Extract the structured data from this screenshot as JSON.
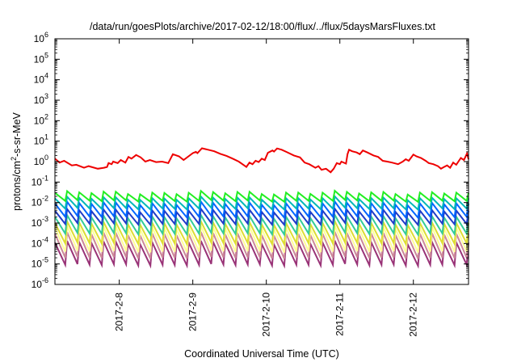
{
  "chart_data": {
    "type": "line",
    "title": "/data/run/goesPlots/archive/2017-02-12/18:00/flux/../flux/5daysMarsFluxes.txt",
    "xlabel": "Coordinated Universal Time (UTC)",
    "ylabel": {
      "base": "protons/cm",
      "sup": "2",
      "rest": "-s-sr-MeV"
    },
    "yscale": "log",
    "ylim": [
      1e-06,
      1000000.0
    ],
    "xlim": [
      "2017-02-07T03:00",
      "2017-02-12T18:00"
    ],
    "ytick_exponents": [
      -6,
      -5,
      -4,
      -3,
      -2,
      -1,
      0,
      1,
      2,
      3,
      4,
      5,
      6
    ],
    "ytick_base": "10",
    "xticks": [
      {
        "x": "2017-02-08T00:00",
        "label": "2017-2-8"
      },
      {
        "x": "2017-02-09T00:00",
        "label": "2017-2-9"
      },
      {
        "x": "2017-02-10T00:00",
        "label": "2017-2-10"
      },
      {
        "x": "2017-02-11T00:00",
        "label": "2017-2-11"
      },
      {
        "x": "2017-02-12T00:00",
        "label": "2017-2-12"
      }
    ],
    "grid": false,
    "legend": "none",
    "series": [
      {
        "color": "#ee0000",
        "width": 2,
        "kind": "piecewise",
        "points": [
          [
            "2017-02-07T03:00",
            1.4
          ],
          [
            "2017-02-07T04:30",
            0.9
          ],
          [
            "2017-02-07T06:00",
            1.1
          ],
          [
            "2017-02-07T08:30",
            0.65
          ],
          [
            "2017-02-07T10:00",
            0.7
          ],
          [
            "2017-02-07T12:30",
            0.5
          ],
          [
            "2017-02-07T14:00",
            0.6
          ],
          [
            "2017-02-07T17:00",
            0.45
          ],
          [
            "2017-02-07T19:00",
            0.5
          ],
          [
            "2017-02-07T20:00",
            0.55
          ],
          [
            "2017-02-07T20:30",
            0.85
          ],
          [
            "2017-02-07T21:30",
            0.75
          ],
          [
            "2017-02-07T22:00",
            1.0
          ],
          [
            "2017-02-07T23:30",
            0.85
          ],
          [
            "2017-02-08T00:30",
            1.2
          ],
          [
            "2017-02-08T02:00",
            0.9
          ],
          [
            "2017-02-08T03:00",
            1.7
          ],
          [
            "2017-02-08T04:00",
            1.4
          ],
          [
            "2017-02-08T05:30",
            2.1
          ],
          [
            "2017-02-08T07:00",
            1.6
          ],
          [
            "2017-02-08T08:30",
            1.0
          ],
          [
            "2017-02-08T10:00",
            1.2
          ],
          [
            "2017-02-08T12:00",
            0.95
          ],
          [
            "2017-02-08T14:00",
            1.0
          ],
          [
            "2017-02-08T16:00",
            0.85
          ],
          [
            "2017-02-08T17:30",
            2.3
          ],
          [
            "2017-02-08T19:30",
            1.8
          ],
          [
            "2017-02-08T21:00",
            1.2
          ],
          [
            "2017-02-09T00:00",
            2.6
          ],
          [
            "2017-02-09T01:00",
            3.0
          ],
          [
            "2017-02-09T01:30",
            2.6
          ],
          [
            "2017-02-09T03:00",
            4.5
          ],
          [
            "2017-02-09T05:00",
            3.8
          ],
          [
            "2017-02-09T07:00",
            3.2
          ],
          [
            "2017-02-09T09:00",
            2.4
          ],
          [
            "2017-02-09T11:00",
            1.9
          ],
          [
            "2017-02-09T13:00",
            1.4
          ],
          [
            "2017-02-09T15:00",
            1.0
          ],
          [
            "2017-02-09T16:30",
            0.7
          ],
          [
            "2017-02-09T17:30",
            0.55
          ],
          [
            "2017-02-09T18:30",
            0.9
          ],
          [
            "2017-02-09T19:30",
            0.75
          ],
          [
            "2017-02-09T20:30",
            1.1
          ],
          [
            "2017-02-09T21:30",
            0.95
          ],
          [
            "2017-02-09T22:30",
            1.4
          ],
          [
            "2017-02-09T23:30",
            1.2
          ],
          [
            "2017-02-10T00:30",
            2.7
          ],
          [
            "2017-02-10T02:00",
            3.5
          ],
          [
            "2017-02-10T02:30",
            3.1
          ],
          [
            "2017-02-10T03:30",
            4.4
          ],
          [
            "2017-02-10T05:00",
            3.8
          ],
          [
            "2017-02-10T06:30",
            3.0
          ],
          [
            "2017-02-10T09:00",
            2.0
          ],
          [
            "2017-02-10T11:00",
            1.6
          ],
          [
            "2017-02-10T12:30",
            0.9
          ],
          [
            "2017-02-10T14:00",
            0.75
          ],
          [
            "2017-02-10T16:00",
            0.5
          ],
          [
            "2017-02-10T17:00",
            0.6
          ],
          [
            "2017-02-10T18:00",
            0.4
          ],
          [
            "2017-02-10T19:30",
            0.45
          ],
          [
            "2017-02-10T21:00",
            0.3
          ],
          [
            "2017-02-10T22:00",
            0.45
          ],
          [
            "2017-02-10T23:00",
            0.85
          ],
          [
            "2017-02-11T00:00",
            0.75
          ],
          [
            "2017-02-11T00:30",
            1.0
          ],
          [
            "2017-02-11T02:00",
            0.8
          ],
          [
            "2017-02-11T02:30",
            2.3
          ],
          [
            "2017-02-11T03:00",
            3.8
          ],
          [
            "2017-02-11T04:00",
            3.2
          ],
          [
            "2017-02-11T05:30",
            2.8
          ],
          [
            "2017-02-11T06:30",
            2.3
          ],
          [
            "2017-02-11T07:30",
            3.5
          ],
          [
            "2017-02-11T09:00",
            2.8
          ],
          [
            "2017-02-11T11:00",
            2.0
          ],
          [
            "2017-02-11T12:30",
            1.7
          ],
          [
            "2017-02-11T14:00",
            1.1
          ],
          [
            "2017-02-11T15:30",
            1.0
          ],
          [
            "2017-02-11T17:00",
            0.9
          ],
          [
            "2017-02-11T19:00",
            0.75
          ],
          [
            "2017-02-11T20:30",
            1.0
          ],
          [
            "2017-02-11T21:30",
            1.3
          ],
          [
            "2017-02-11T22:30",
            1.1
          ],
          [
            "2017-02-12T00:00",
            2.2
          ],
          [
            "2017-02-12T01:00",
            1.8
          ],
          [
            "2017-02-12T02:30",
            1.5
          ],
          [
            "2017-02-12T04:00",
            1.1
          ],
          [
            "2017-02-12T05:00",
            0.85
          ],
          [
            "2017-02-12T06:30",
            0.75
          ],
          [
            "2017-02-12T08:00",
            0.6
          ],
          [
            "2017-02-12T09:00",
            0.45
          ],
          [
            "2017-02-12T10:00",
            0.55
          ],
          [
            "2017-02-12T11:00",
            0.65
          ],
          [
            "2017-02-12T12:00",
            0.5
          ],
          [
            "2017-02-12T13:00",
            0.9
          ],
          [
            "2017-02-12T14:00",
            0.7
          ],
          [
            "2017-02-12T15:30",
            1.5
          ],
          [
            "2017-02-12T16:30",
            1.2
          ],
          [
            "2017-02-12T17:30",
            2.5
          ],
          [
            "2017-02-12T18:00",
            1.3
          ]
        ]
      },
      {
        "color": "#22ee22",
        "width": 2,
        "kind": "sawtooth",
        "high": 0.03,
        "low": 0.012,
        "cycles": 34
      },
      {
        "color": "#00b8b8",
        "width": 2,
        "kind": "sawtooth",
        "high": 0.016,
        "low": 0.005,
        "cycles": 34
      },
      {
        "color": "#0066ff",
        "width": 2,
        "kind": "sawtooth",
        "high": 0.009,
        "low": 0.002,
        "cycles": 34
      },
      {
        "color": "#1f3cc8",
        "width": 2,
        "kind": "sawtooth",
        "high": 0.004,
        "low": 0.0009,
        "cycles": 34
      },
      {
        "color": "#33cc99",
        "width": 2,
        "kind": "sawtooth",
        "high": 0.002,
        "low": 0.0003,
        "cycles": 34
      },
      {
        "color": "#dddd33",
        "width": 2,
        "kind": "sawtooth",
        "high": 0.001,
        "low": 0.0001,
        "cycles": 34
      },
      {
        "color": "#ffff99",
        "width": 2,
        "kind": "sawtooth",
        "high": 0.0006,
        "low": 4e-05,
        "cycles": 34
      },
      {
        "color": "#cc8899",
        "width": 2,
        "kind": "sawtooth",
        "high": 0.0003,
        "low": 2e-05,
        "cycles": 34
      },
      {
        "color": "#993377",
        "width": 2,
        "kind": "sawtooth",
        "high": 0.00011,
        "low": 9e-06,
        "cycles": 34
      }
    ]
  }
}
